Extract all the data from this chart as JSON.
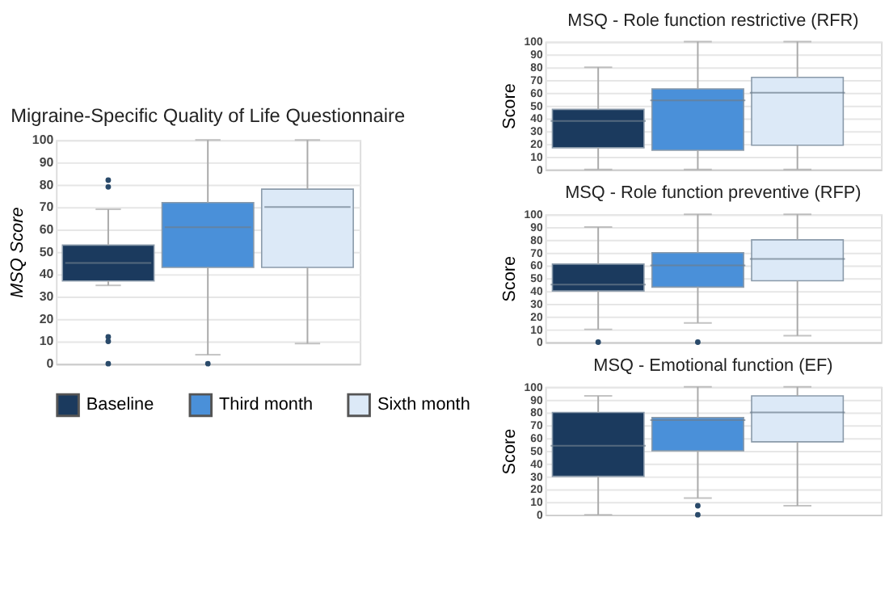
{
  "chart_data": [
    {
      "type": "box",
      "title": "Migraine-Specific Quality of Life Questionnaire",
      "ylabel": "MSQ Score",
      "categories": [
        null
      ],
      "ylim": [
        0,
        100
      ],
      "yticks": [
        0,
        10,
        20,
        30,
        40,
        50,
        60,
        70,
        80,
        90,
        100
      ],
      "grid": "y",
      "legend": "bottom",
      "tick_labels": "y",
      "series": [
        {
          "name": "Baseline",
          "color": "#1b3a5e",
          "boxes": [
            {
              "low": 35,
              "q1": 37,
              "median": 45,
              "q3": 53,
              "high": 69,
              "outliers": [
                82,
                79,
                12,
                10,
                0
              ]
            }
          ]
        },
        {
          "name": "Third month",
          "color": "#4a90d9",
          "boxes": [
            {
              "low": 4,
              "q1": 43,
              "median": 61,
              "q3": 72,
              "high": 100,
              "outliers": [
                0
              ]
            }
          ]
        },
        {
          "name": "Sixth month",
          "color": "#dce9f7",
          "boxes": [
            {
              "low": 9,
              "q1": 43,
              "median": 70,
              "q3": 78,
              "high": 100
            }
          ]
        }
      ]
    },
    {
      "type": "box",
      "title": "MSQ - Role function restrictive (RFR)",
      "ylabel": "Score",
      "categories": [
        null
      ],
      "ylim": [
        0,
        100
      ],
      "yticks": [
        0,
        10,
        20,
        30,
        40,
        50,
        60,
        70,
        80,
        90,
        100
      ],
      "grid": "y",
      "tick_labels": "y",
      "series": [
        {
          "color": "#1b3a5e",
          "boxes": [
            {
              "low": 0,
              "q1": 17,
              "median": 38,
              "q3": 47,
              "high": 80
            }
          ]
        },
        {
          "color": "#4a90d9",
          "boxes": [
            {
              "low": 0,
              "q1": 15,
              "median": 54,
              "q3": 63,
              "high": 100
            }
          ]
        },
        {
          "color": "#dce9f7",
          "boxes": [
            {
              "low": 0,
              "q1": 19,
              "median": 60,
              "q3": 72,
              "high": 100
            }
          ]
        }
      ]
    },
    {
      "type": "box",
      "title": "MSQ - Role function preventive (RFP)",
      "ylabel": "Score",
      "categories": [
        null
      ],
      "ylim": [
        0,
        100
      ],
      "yticks": [
        0,
        10,
        20,
        30,
        40,
        50,
        60,
        70,
        80,
        90,
        100
      ],
      "grid": "y",
      "tick_labels": "y",
      "series": [
        {
          "color": "#1b3a5e",
          "boxes": [
            {
              "low": 10,
              "q1": 40,
              "median": 45,
              "q3": 61,
              "high": 90,
              "outliers": [
                0
              ]
            }
          ]
        },
        {
          "color": "#4a90d9",
          "boxes": [
            {
              "low": 15,
              "q1": 43,
              "median": 60,
              "q3": 70,
              "high": 100,
              "outliers": [
                0
              ]
            }
          ]
        },
        {
          "color": "#dce9f7",
          "boxes": [
            {
              "low": 5,
              "q1": 48,
              "median": 65,
              "q3": 80,
              "high": 100
            }
          ]
        }
      ]
    },
    {
      "type": "box",
      "title": "MSQ - Emotional function (EF)",
      "ylabel": "Score",
      "categories": [
        null
      ],
      "ylim": [
        0,
        100
      ],
      "yticks": [
        0,
        10,
        20,
        30,
        40,
        50,
        60,
        70,
        80,
        90,
        100
      ],
      "grid": "y",
      "tick_labels": "y",
      "series": [
        {
          "color": "#1b3a5e",
          "boxes": [
            {
              "low": 0,
              "q1": 30,
              "median": 54,
              "q3": 80,
              "high": 93
            }
          ]
        },
        {
          "color": "#4a90d9",
          "boxes": [
            {
              "low": 13,
              "q1": 50,
              "median": 74,
              "q3": 76,
              "high": 100,
              "outliers": [
                7,
                0
              ]
            }
          ]
        },
        {
          "color": "#dce9f7",
          "boxes": [
            {
              "low": 7,
              "q1": 57,
              "median": 80,
              "q3": 93,
              "high": 100
            }
          ]
        }
      ]
    }
  ]
}
